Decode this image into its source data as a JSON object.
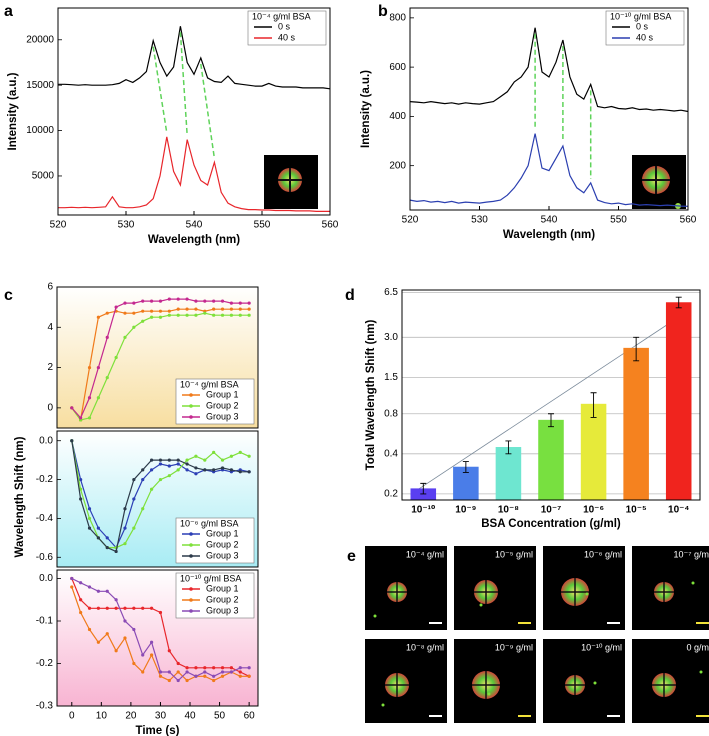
{
  "chart_data": [
    {
      "type": "line",
      "panel": "a",
      "xlabel": "Wavelength (nm)",
      "ylabel": "Intensity (a.u.)",
      "legend_title": "10⁻⁴ g/ml BSA",
      "legend": "upper right",
      "x": [
        520,
        521,
        522,
        523,
        524,
        525,
        526,
        527,
        528,
        529,
        530,
        531,
        532,
        533,
        534,
        535,
        536,
        537,
        538,
        539,
        540,
        541,
        542,
        543,
        544,
        545,
        546,
        547,
        548,
        549,
        550,
        551,
        552,
        553,
        554,
        555,
        556,
        557,
        558,
        559,
        560
      ],
      "series": [
        {
          "name": "0 s",
          "color": "#000000",
          "values": [
            15100,
            15100,
            15050,
            15000,
            15050,
            15000,
            15000,
            15000,
            15050,
            15200,
            15600,
            15300,
            15800,
            16500,
            19900,
            17500,
            16000,
            17000,
            21500,
            17500,
            16200,
            18000,
            15800,
            15400,
            15300,
            16000,
            15200,
            15100,
            15000,
            14900,
            14900,
            15200,
            14900,
            14800,
            14800,
            14800,
            14700,
            14700,
            14700,
            14700,
            14600
          ]
        },
        {
          "name": "40 s",
          "color": "#e8262b",
          "values": [
            1500,
            1500,
            1550,
            1500,
            1550,
            1500,
            1550,
            1600,
            2700,
            1600,
            1500,
            1500,
            1600,
            1800,
            2500,
            5000,
            9300,
            5500,
            4000,
            9000,
            6200,
            4500,
            4000,
            6500,
            3200,
            2000,
            1600,
            1400,
            1300,
            1300,
            1250,
            1250,
            1200,
            1200,
            1200,
            1150,
            1150,
            1150,
            1100,
            1100,
            1100
          ]
        }
      ],
      "xlim": [
        520,
        560
      ],
      "xticks": [
        520,
        530,
        540,
        550,
        560
      ],
      "ylim": [
        700,
        23500
      ],
      "yticks": [
        5000,
        10000,
        15000,
        20000
      ]
    },
    {
      "type": "line",
      "panel": "b",
      "xlabel": "Wavelength (nm)",
      "ylabel": "Intensity (a.u.)",
      "legend_title": "10⁻¹⁰ g/ml BSA",
      "legend": "upper right",
      "x": [
        520,
        521,
        522,
        523,
        524,
        525,
        526,
        527,
        528,
        529,
        530,
        531,
        532,
        533,
        534,
        535,
        536,
        537,
        538,
        539,
        540,
        541,
        542,
        543,
        544,
        545,
        546,
        547,
        548,
        549,
        550,
        551,
        552,
        553,
        554,
        555,
        556,
        557,
        558,
        559,
        560
      ],
      "series": [
        {
          "name": "0 s",
          "color": "#000000",
          "values": [
            460,
            458,
            455,
            460,
            456,
            452,
            455,
            450,
            455,
            452,
            450,
            455,
            460,
            480,
            500,
            540,
            560,
            600,
            760,
            580,
            560,
            620,
            710,
            560,
            490,
            470,
            530,
            440,
            435,
            440,
            432,
            430,
            435,
            428,
            430,
            425,
            428,
            425,
            422,
            425,
            420
          ]
        },
        {
          "name": "40 s",
          "color": "#2b3fb0",
          "values": [
            60,
            55,
            58,
            52,
            55,
            50,
            55,
            48,
            52,
            50,
            48,
            52,
            55,
            60,
            80,
            110,
            150,
            200,
            330,
            190,
            180,
            230,
            280,
            160,
            110,
            90,
            130,
            60,
            50,
            45,
            48,
            42,
            45,
            40,
            42,
            40,
            38,
            40,
            38,
            36,
            35
          ]
        }
      ],
      "xlim": [
        520,
        560
      ],
      "xticks": [
        520,
        530,
        540,
        550,
        560
      ],
      "ylim": [
        20,
        840
      ],
      "yticks": [
        200,
        400,
        600,
        800
      ]
    },
    {
      "type": "line",
      "panel": "c",
      "markers": true,
      "background": "#f7dea0",
      "legend_title": "10⁻⁴ g/ml BSA",
      "legend": "lower right",
      "x": [
        0,
        3,
        6,
        9,
        12,
        15,
        18,
        21,
        24,
        27,
        30,
        33,
        36,
        39,
        42,
        45,
        48,
        51,
        54,
        57,
        60
      ],
      "series": [
        {
          "name": "Group 1",
          "color": "#f07a1a",
          "values": [
            0,
            -0.6,
            2,
            4.5,
            4.7,
            4.8,
            4.7,
            4.7,
            4.8,
            4.8,
            4.8,
            4.8,
            4.9,
            4.9,
            4.9,
            4.8,
            4.9,
            4.9,
            4.9,
            4.9,
            4.9
          ]
        },
        {
          "name": "Group 2",
          "color": "#7ee03a",
          "values": [
            0,
            -0.6,
            -0.5,
            0.5,
            1.5,
            2.5,
            3.5,
            4,
            4.3,
            4.5,
            4.5,
            4.6,
            4.6,
            4.6,
            4.6,
            4.7,
            4.6,
            4.6,
            4.6,
            4.6,
            4.6
          ]
        },
        {
          "name": "Group 3",
          "color": "#c4288f",
          "values": [
            0,
            -0.5,
            0.5,
            2,
            3.5,
            5,
            5.2,
            5.2,
            5.3,
            5.3,
            5.3,
            5.4,
            5.4,
            5.4,
            5.3,
            5.3,
            5.3,
            5.3,
            5.2,
            5.2,
            5.2
          ]
        }
      ],
      "xlim": [
        -5,
        63
      ],
      "ylim": [
        -1,
        6
      ],
      "yticks": [
        0,
        2,
        4,
        6
      ]
    },
    {
      "type": "line",
      "panel": "",
      "markers": true,
      "background": "#a8ecf4",
      "ylabel": "Wavelength Shift (nm)",
      "legend_title": "10⁻⁶ g/ml BSA",
      "legend": "lower right",
      "x": [
        0,
        3,
        6,
        9,
        12,
        15,
        18,
        21,
        24,
        27,
        30,
        33,
        36,
        39,
        42,
        45,
        48,
        51,
        54,
        57,
        60
      ],
      "series": [
        {
          "name": "Group 1",
          "color": "#2c3fb5",
          "values": [
            0,
            -0.2,
            -0.35,
            -0.45,
            -0.5,
            -0.55,
            -0.45,
            -0.3,
            -0.2,
            -0.15,
            -0.12,
            -0.13,
            -0.12,
            -0.15,
            -0.17,
            -0.15,
            -0.16,
            -0.15,
            -0.16,
            -0.15,
            -0.16
          ]
        },
        {
          "name": "Group 2",
          "color": "#7ee03a",
          "values": [
            0,
            -0.25,
            -0.4,
            -0.5,
            -0.55,
            -0.55,
            -0.53,
            -0.45,
            -0.35,
            -0.25,
            -0.2,
            -0.18,
            -0.15,
            -0.1,
            -0.08,
            -0.1,
            -0.06,
            -0.1,
            -0.08,
            -0.06,
            -0.08
          ]
        },
        {
          "name": "Group 3",
          "color": "#2c3a4a",
          "values": [
            0,
            -0.3,
            -0.45,
            -0.5,
            -0.55,
            -0.57,
            -0.35,
            -0.2,
            -0.15,
            -0.1,
            -0.1,
            -0.1,
            -0.1,
            -0.12,
            -0.14,
            -0.15,
            -0.15,
            -0.14,
            -0.15,
            -0.16,
            -0.16
          ]
        }
      ],
      "xlim": [
        -5,
        63
      ],
      "ylim": [
        -0.65,
        0.05
      ],
      "yticks": [
        -0.6,
        -0.4,
        -0.2,
        {
          "value": 0,
          "label": "0.0"
        }
      ]
    },
    {
      "type": "line",
      "panel": "",
      "markers": true,
      "background": "#f8b4d2",
      "xlabel": "Time (s)",
      "legend_title": "10⁻¹⁰ g/ml BSA",
      "legend": "upper right",
      "x": [
        0,
        3,
        6,
        9,
        12,
        15,
        18,
        21,
        24,
        27,
        30,
        33,
        36,
        39,
        42,
        45,
        48,
        51,
        54,
        57,
        60
      ],
      "series": [
        {
          "name": "Group 1",
          "color": "#e8262b",
          "values": [
            0,
            -0.05,
            -0.07,
            -0.07,
            -0.07,
            -0.07,
            -0.07,
            -0.07,
            -0.07,
            -0.07,
            -0.08,
            -0.17,
            -0.2,
            -0.21,
            -0.21,
            -0.21,
            -0.21,
            -0.21,
            -0.21,
            -0.22,
            -0.23
          ]
        },
        {
          "name": "Group 2",
          "color": "#f07a1a",
          "values": [
            -0.02,
            -0.08,
            -0.12,
            -0.15,
            -0.13,
            -0.17,
            -0.14,
            -0.2,
            -0.22,
            -0.18,
            -0.23,
            -0.24,
            -0.22,
            -0.24,
            -0.23,
            -0.23,
            -0.24,
            -0.23,
            -0.22,
            -0.23,
            -0.23
          ]
        },
        {
          "name": "Group 3",
          "color": "#8a4bb5",
          "values": [
            0,
            -0.01,
            -0.02,
            -0.03,
            -0.03,
            -0.05,
            -0.1,
            -0.12,
            -0.18,
            -0.15,
            -0.22,
            -0.22,
            -0.24,
            -0.22,
            -0.23,
            -0.22,
            -0.23,
            -0.22,
            -0.22,
            -0.21,
            -0.21
          ]
        }
      ],
      "xlim": [
        -5,
        63
      ],
      "xticks": [
        0,
        10,
        20,
        30,
        40,
        50,
        60
      ],
      "ylim": [
        -0.3,
        0.02
      ],
      "yticks": [
        -0.3,
        -0.2,
        -0.1,
        {
          "value": 0,
          "label": "0.0"
        }
      ]
    },
    {
      "type": "bar",
      "panel": "d",
      "xlabel": "BSA Concentration (g/ml)",
      "ylabel": "Total Wavelength Shift (nm)",
      "log_scale": true,
      "grid": true,
      "categories": [
        "10⁻¹⁰",
        "10⁻⁹",
        "10⁻⁸",
        "10⁻⁷",
        "10⁻⁶",
        "10⁻⁵",
        "10⁻⁴"
      ],
      "values": [
        0.22,
        0.32,
        0.45,
        0.72,
        0.95,
        2.5,
        5.5
      ],
      "errors": [
        0.02,
        0.03,
        0.05,
        0.08,
        0.2,
        0.5,
        0.5
      ],
      "colors": [
        "#5a3ff0",
        "#4a7de8",
        "#6ee6d0",
        "#78e040",
        "#e6ea3a",
        "#f5821f",
        "#f0241e"
      ],
      "ylim": [
        0.18,
        6.8
      ],
      "yticks": [
        0.2,
        0.4,
        0.8,
        1.5,
        {
          "value": 3,
          "label": "3.0"
        },
        6.5
      ]
    }
  ],
  "images_panel": {
    "panel": "e",
    "labels": [
      "10⁻⁴ g/ml",
      "10⁻⁵ g/ml",
      "10⁻⁶ g/ml",
      "10⁻⁷ g/ml",
      "10⁻⁸ g/ml",
      "10⁻⁹ g/ml",
      "10⁻¹⁰ g/ml",
      "0 g/ml"
    ]
  }
}
